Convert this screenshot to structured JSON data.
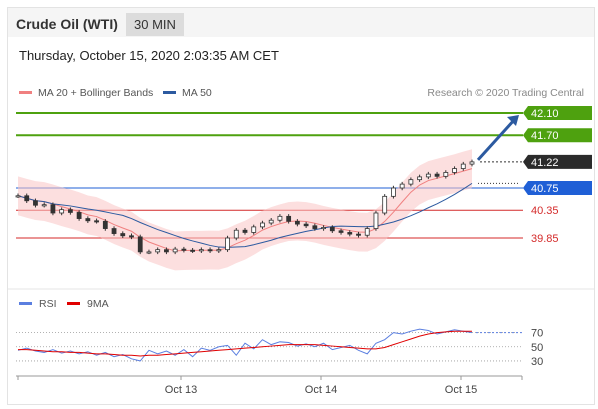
{
  "header": {
    "instrument": "Crude Oil (WTI)",
    "timeframe": "30 MIN"
  },
  "timestamp": "Thursday, October 15, 2020 2:03:35 AM CET",
  "legend": {
    "items": [
      {
        "label": "MA 20 + Bollinger Bands",
        "color": "#f08080"
      },
      {
        "label": "MA 50",
        "color": "#2c5aa0"
      }
    ],
    "credit": "Research © 2020 Trading Central"
  },
  "chart_data": {
    "type": "line",
    "title": "",
    "x_ticks": [
      "Oct 13",
      "Oct 14",
      "Oct 15"
    ],
    "ylim": [
      39.45,
      42.4
    ],
    "price_series": [
      40.61,
      40.52,
      40.44,
      40.45,
      40.3,
      40.36,
      40.31,
      40.2,
      40.16,
      40.15,
      40.02,
      39.93,
      39.89,
      39.87,
      39.6,
      39.6,
      39.64,
      39.6,
      39.65,
      39.63,
      39.62,
      39.64,
      39.62,
      39.64,
      39.85,
      39.99,
      39.95,
      40.05,
      40.12,
      40.17,
      40.24,
      40.15,
      40.1,
      40.07,
      40.02,
      40.04,
      39.98,
      39.95,
      39.92,
      39.9,
      40.02,
      40.3,
      40.6,
      40.75,
      40.82,
      40.9,
      40.95,
      41.0,
      40.96,
      41.03,
      41.1,
      41.18,
      41.22
    ],
    "levels": [
      {
        "label": "42.10",
        "value": 42.1,
        "kind": "resistance",
        "color": "#4ea10f"
      },
      {
        "label": "41.70",
        "value": 41.7,
        "kind": "resistance",
        "color": "#4ea10f"
      },
      {
        "label": "41.22",
        "value": 41.22,
        "kind": "current",
        "color": "#2b2b2b"
      },
      {
        "label": "40.75",
        "value": 40.75,
        "kind": "pivot",
        "color": "#1f5fd6"
      },
      {
        "label": "40.35",
        "value": 40.35,
        "kind": "support",
        "color": "#d42a2a"
      },
      {
        "label": "39.85",
        "value": 39.85,
        "kind": "support",
        "color": "#d42a2a"
      }
    ],
    "target_arrow": {
      "from": 41.22,
      "to": 42.1,
      "color": "#2c5aa0"
    },
    "rsi": {
      "legend": [
        {
          "label": "RSI",
          "color": "#5b7fe0"
        },
        {
          "label": "9MA",
          "color": "#e00000"
        }
      ],
      "ticks": [
        "70",
        "50",
        "30"
      ],
      "ylim": [
        20,
        85
      ],
      "rsi_values": [
        45,
        48,
        44,
        42,
        46,
        41,
        44,
        40,
        43,
        38,
        42,
        36,
        39,
        33,
        30,
        45,
        40,
        44,
        38,
        46,
        36,
        48,
        45,
        50,
        52,
        38,
        55,
        47,
        60,
        53,
        57,
        56,
        51,
        54,
        50,
        55,
        46,
        49,
        52,
        45,
        40,
        55,
        60,
        70,
        68,
        72,
        75,
        73,
        68,
        71,
        74,
        72,
        70
      ],
      "ma_values": [
        46,
        46,
        45,
        44,
        43,
        43,
        42,
        42,
        41,
        40,
        40,
        39,
        38,
        38,
        37,
        38,
        38,
        39,
        40,
        41,
        42,
        43,
        44,
        45,
        46,
        47,
        48,
        49,
        50,
        51,
        52,
        53,
        53,
        53,
        53,
        52,
        51,
        50,
        49,
        48,
        47,
        47,
        49,
        53,
        57,
        61,
        65,
        68,
        70,
        71,
        72,
        72,
        72
      ]
    }
  }
}
